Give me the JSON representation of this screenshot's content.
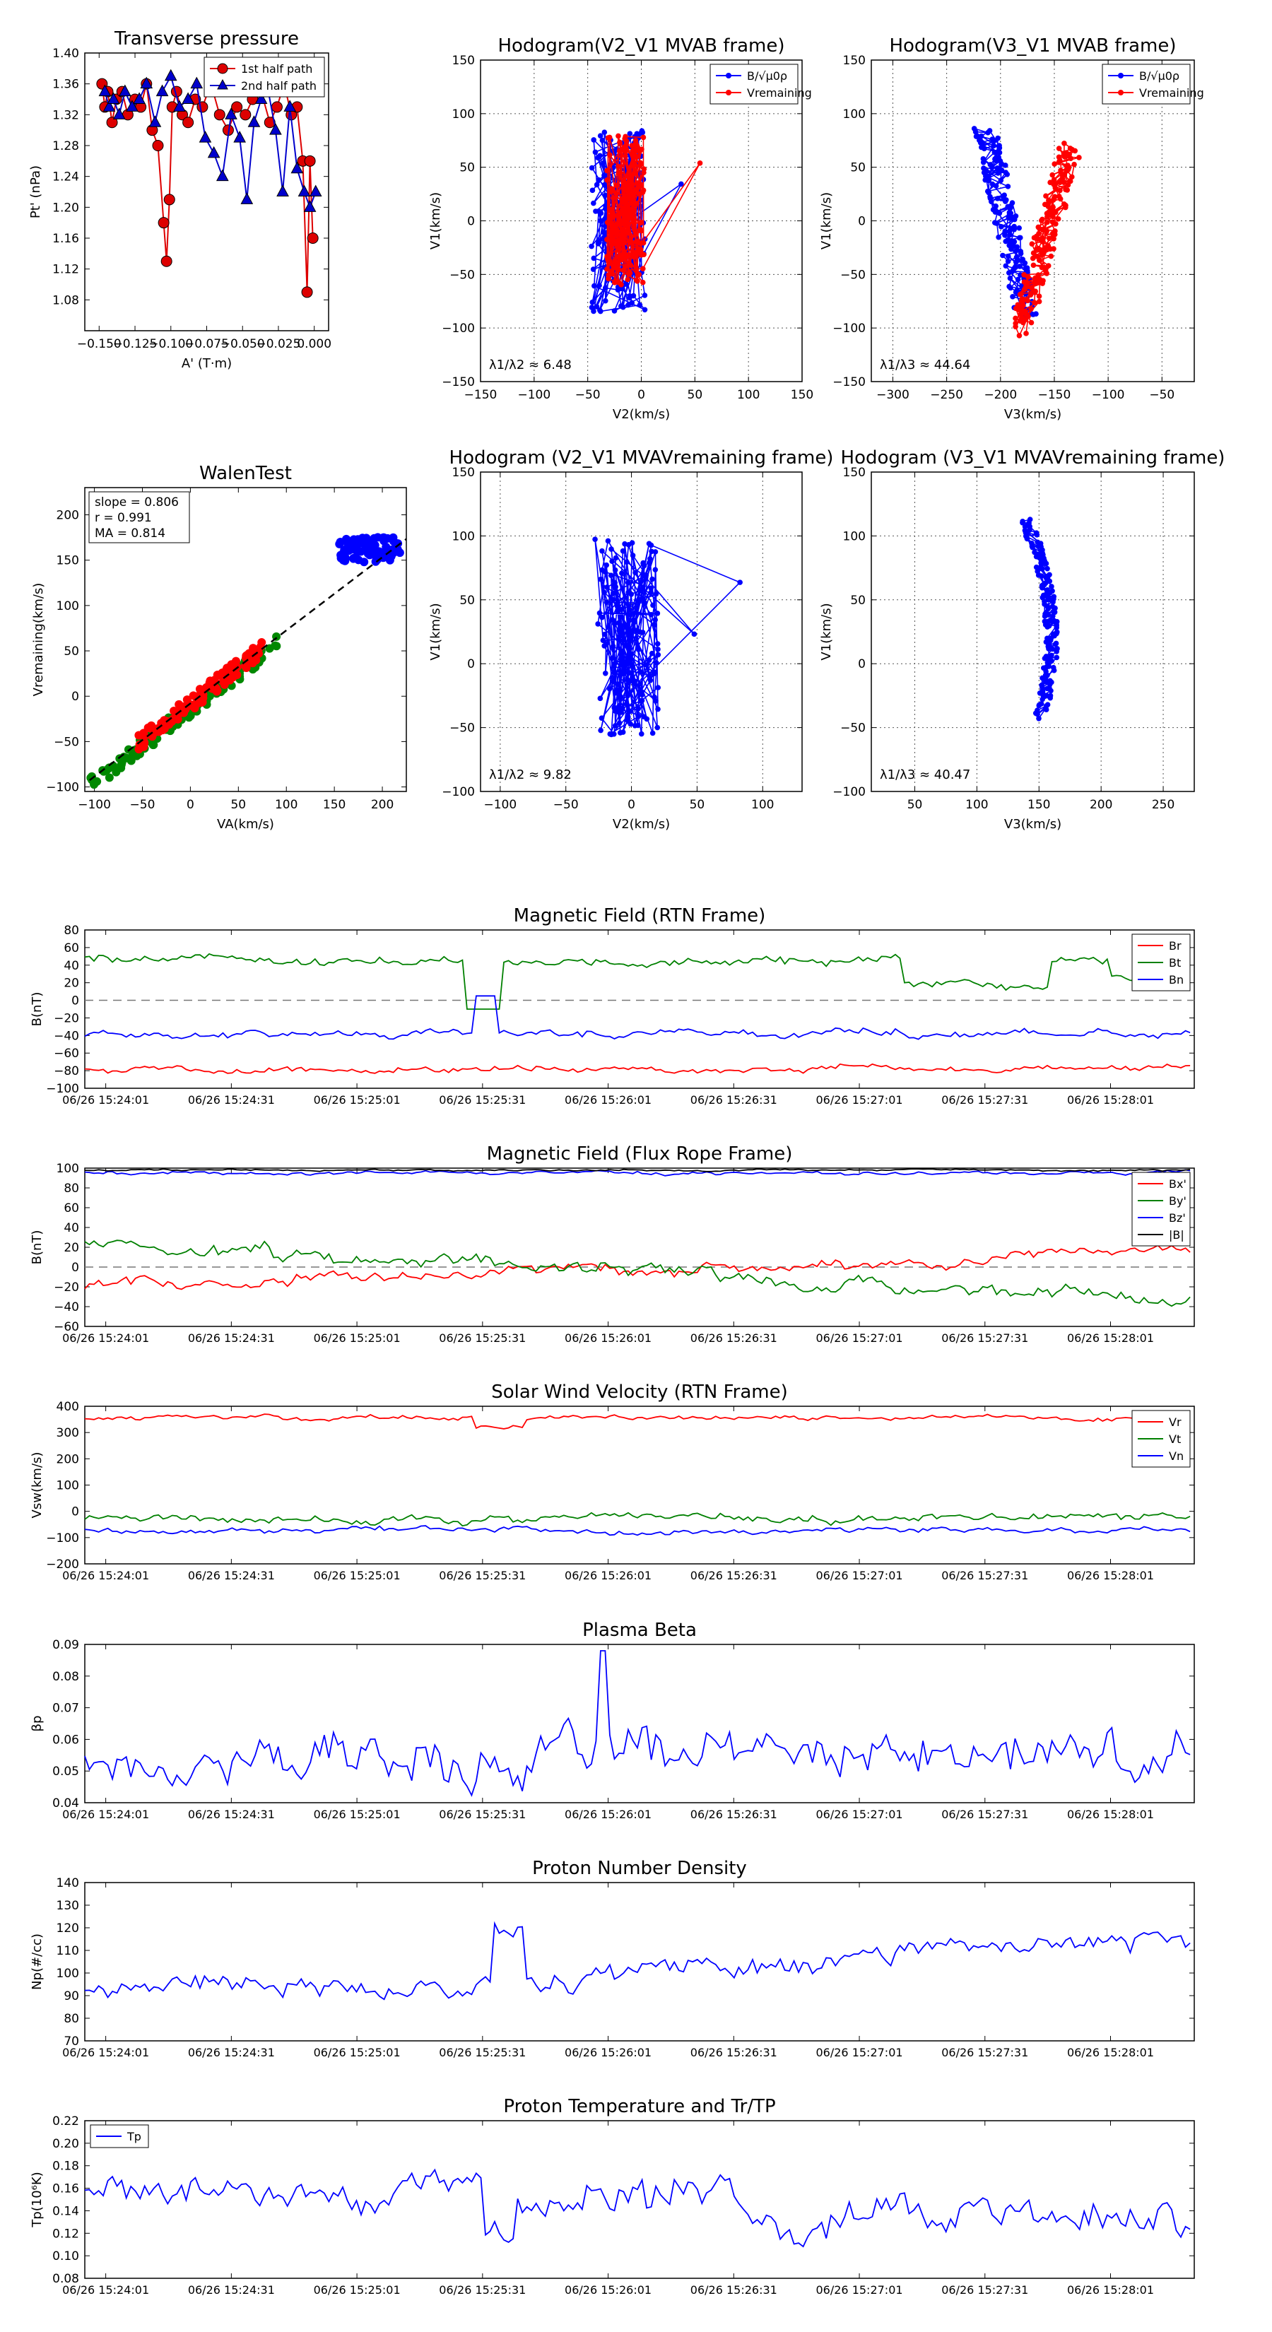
{
  "chart_data": [
    {
      "id": "pt",
      "type": "scatter",
      "title": "Transverse pressure",
      "xlabel": "A' (T·m)",
      "ylabel": "Pt' (nPa)",
      "xlim": [
        -0.16,
        0.01
      ],
      "ylim": [
        1.04,
        1.4
      ],
      "xticks": [
        -0.15,
        -0.125,
        -0.1,
        -0.075,
        -0.05,
        -0.025,
        0.0
      ],
      "xticklabels": [
        "−0.150",
        "−0.125",
        "−0.100",
        "−0.075",
        "−0.050",
        "−0.025",
        "0.000"
      ],
      "yticks": [
        1.08,
        1.12,
        1.16,
        1.2,
        1.24,
        1.28,
        1.32,
        1.36,
        1.4
      ],
      "yticklabels": [
        "1.08",
        "1.12",
        "1.16",
        "1.20",
        "1.24",
        "1.28",
        "1.32",
        "1.36",
        "1.40"
      ],
      "legend_loc": "top-right",
      "series": [
        {
          "name": "1st half path",
          "color": "#dd0000",
          "marker": "circle",
          "x": [
            -0.148,
            -0.146,
            -0.144,
            -0.141,
            -0.138,
            -0.134,
            -0.13,
            -0.125,
            -0.121,
            -0.117,
            -0.113,
            -0.109,
            -0.105,
            -0.103,
            -0.101,
            -0.099,
            -0.096,
            -0.092,
            -0.088,
            -0.083,
            -0.078,
            -0.072,
            -0.066,
            -0.06,
            -0.054,
            -0.048,
            -0.043,
            -0.037,
            -0.031,
            -0.026,
            -0.021,
            -0.016,
            -0.012,
            -0.008,
            -0.005,
            -0.003,
            -0.001
          ],
          "y": [
            1.36,
            1.33,
            1.35,
            1.31,
            1.34,
            1.35,
            1.32,
            1.34,
            1.33,
            1.36,
            1.3,
            1.28,
            1.18,
            1.13,
            1.21,
            1.33,
            1.35,
            1.32,
            1.31,
            1.34,
            1.33,
            1.36,
            1.32,
            1.3,
            1.33,
            1.32,
            1.34,
            1.35,
            1.31,
            1.33,
            1.36,
            1.32,
            1.33,
            1.26,
            1.09,
            1.26,
            1.16
          ]
        },
        {
          "name": "2nd half path",
          "color": "#0000cc",
          "marker": "triangle",
          "x": [
            -0.146,
            -0.143,
            -0.14,
            -0.136,
            -0.132,
            -0.127,
            -0.122,
            -0.117,
            -0.111,
            -0.106,
            -0.1,
            -0.094,
            -0.088,
            -0.082,
            -0.076,
            -0.07,
            -0.064,
            -0.058,
            -0.052,
            -0.047,
            -0.042,
            -0.037,
            -0.032,
            -0.027,
            -0.022,
            -0.017,
            -0.012,
            -0.007,
            -0.003,
            0.001
          ],
          "y": [
            1.35,
            1.33,
            1.34,
            1.32,
            1.35,
            1.33,
            1.34,
            1.36,
            1.31,
            1.35,
            1.37,
            1.33,
            1.34,
            1.36,
            1.29,
            1.27,
            1.24,
            1.32,
            1.29,
            1.21,
            1.31,
            1.34,
            1.35,
            1.3,
            1.22,
            1.33,
            1.25,
            1.22,
            1.2,
            1.22
          ]
        }
      ]
    },
    {
      "id": "h12",
      "type": "line",
      "title": "Hodogram(V2_V1 MVAB frame)",
      "xlabel": "V2(km/s)",
      "ylabel": "V1(km/s)",
      "xlim": [
        -150,
        150
      ],
      "ylim": [
        -150,
        150
      ],
      "xticks": [
        -150,
        -100,
        -50,
        0,
        50,
        100,
        150
      ],
      "xticklabels": [
        "−150",
        "−100",
        "−50",
        "0",
        "50",
        "100",
        "150"
      ],
      "yticks": [
        -150,
        -100,
        -50,
        0,
        50,
        100,
        150
      ],
      "yticklabels": [
        "−150",
        "−100",
        "−50",
        "0",
        "50",
        "100",
        "150"
      ],
      "legend_loc": "top-right",
      "annotation": "λ1/λ2 ≈ 6.48",
      "series": [
        {
          "name": "B/√μ0ρ",
          "color": "#0000ff",
          "center": [
            -22,
            0
          ],
          "spread": [
            32,
            65
          ]
        },
        {
          "name": "Vremaining",
          "color": "#ff0000",
          "center": [
            -15,
            10
          ],
          "spread": [
            22,
            55
          ]
        }
      ]
    },
    {
      "id": "h13",
      "type": "line",
      "title": "Hodogram(V3_V1 MVAB frame)",
      "xlabel": "V3(km/s)",
      "ylabel": "V1(km/s)",
      "xlim": [
        -320,
        -20
      ],
      "ylim": [
        -150,
        150
      ],
      "xticks": [
        -300,
        -250,
        -200,
        -150,
        -100,
        -50
      ],
      "xticklabels": [
        "−300",
        "−250",
        "−200",
        "−150",
        "−100",
        "−50"
      ],
      "yticks": [
        -150,
        -100,
        -50,
        0,
        50,
        100,
        150
      ],
      "yticklabels": [
        "−150",
        "−100",
        "−50",
        "0",
        "50",
        "100",
        "150"
      ],
      "legend_loc": "top-right",
      "annotation": "λ1/λ3 ≈ 44.64",
      "series": [
        {
          "name": "B/√μ0ρ",
          "color": "#0000ff",
          "center": [
            -195,
            0
          ],
          "tilt": -0.22
        },
        {
          "name": "Vremaining",
          "color": "#ff0000",
          "center": [
            -158,
            -15
          ],
          "tilt": 0.28
        }
      ]
    },
    {
      "id": "walen",
      "type": "scatter",
      "title": "WalenTest",
      "xlabel": "VA(km/s)",
      "ylabel": "Vremaining(km/s)",
      "xlim": [
        -110,
        225
      ],
      "ylim": [
        -105,
        230
      ],
      "xticks": [
        -100,
        -50,
        0,
        50,
        100,
        150,
        200
      ],
      "xticklabels": [
        "−100",
        "−50",
        "0",
        "50",
        "100",
        "150",
        "200"
      ],
      "yticks": [
        -100,
        -50,
        0,
        50,
        100,
        150,
        200
      ],
      "yticklabels": [
        "−100",
        "−50",
        "0",
        "50",
        "100",
        "150",
        "200"
      ],
      "stats": [
        "slope = 0.806",
        "r = 0.991",
        "MA = 0.814"
      ],
      "fit": {
        "slope": 0.806,
        "intercept": -8
      },
      "series": [
        {
          "name": "red",
          "color": "#ff0000"
        },
        {
          "name": "green",
          "color": "#008800"
        },
        {
          "name": "blue",
          "color": "#0000ff"
        }
      ]
    },
    {
      "id": "h12r",
      "type": "line",
      "title": "Hodogram (V2_V1 MVAVremaining frame)",
      "xlabel": "V2(km/s)",
      "ylabel": "V1(km/s)",
      "xlim": [
        -115,
        130
      ],
      "ylim": [
        -100,
        150
      ],
      "xticks": [
        -100,
        -50,
        0,
        50,
        100
      ],
      "xticklabels": [
        "−100",
        "−50",
        "0",
        "50",
        "100"
      ],
      "yticks": [
        -100,
        -50,
        0,
        50,
        100,
        150
      ],
      "yticklabels": [
        "−100",
        "−50",
        "0",
        "50",
        "100",
        "150"
      ],
      "annotation": "λ1/λ2 ≈ 9.82",
      "series": [
        {
          "name": "V",
          "color": "#0000ff",
          "center": [
            -2,
            20
          ],
          "spread": [
            28,
            60
          ]
        }
      ]
    },
    {
      "id": "h13r",
      "type": "line",
      "title": "Hodogram (V3_V1 MVAVremaining frame)",
      "xlabel": "V3(km/s)",
      "ylabel": "V1(km/s)",
      "xlim": [
        15,
        275
      ],
      "ylim": [
        -100,
        150
      ],
      "xticks": [
        50,
        100,
        150,
        200,
        250
      ],
      "xticklabels": [
        "50",
        "100",
        "150",
        "200",
        "250"
      ],
      "yticks": [
        -100,
        -50,
        0,
        50,
        100,
        150
      ],
      "yticklabels": [
        "−100",
        "−50",
        "0",
        "50",
        "100",
        "150"
      ],
      "annotation": "λ1/λ3 ≈ 40.47",
      "series": [
        {
          "name": "V",
          "color": "#0000ff",
          "center": [
            160,
            30
          ]
        }
      ]
    },
    {
      "id": "ts_brtn",
      "type": "line",
      "title": "Magnetic Field (RTN Frame)",
      "ylabel": "B(nT)",
      "ylim": [
        -100,
        80
      ],
      "yticks": [
        -100,
        -80,
        -60,
        -40,
        -20,
        0,
        20,
        40,
        60,
        80
      ],
      "yticklabels": [
        "−100",
        "−80",
        "−60",
        "−40",
        "−20",
        "0",
        "20",
        "40",
        "60",
        "80"
      ],
      "zero_line": true,
      "legend_loc": "top-right",
      "series": [
        {
          "name": "Br",
          "color": "#ff0000",
          "base": -78,
          "noise": 4
        },
        {
          "name": "Bt",
          "color": "#008000",
          "base": 45,
          "noise": 6
        },
        {
          "name": "Bn",
          "color": "#0000ff",
          "base": -38,
          "noise": 5
        }
      ]
    },
    {
      "id": "ts_bfr",
      "type": "line",
      "title": "Magnetic Field (Flux Rope Frame)",
      "ylabel": "B(nT)",
      "ylim": [
        -60,
        100
      ],
      "yticks": [
        -60,
        -40,
        -20,
        0,
        20,
        40,
        60,
        80,
        100
      ],
      "yticklabels": [
        "−60",
        "−40",
        "−20",
        "0",
        "20",
        "40",
        "60",
        "80",
        "100"
      ],
      "zero_line": true,
      "legend_loc": "top-right",
      "series": [
        {
          "name": "Bx'",
          "color": "#ff0000",
          "base": -5,
          "noise": 6
        },
        {
          "name": "By'",
          "color": "#008000",
          "base": 10,
          "noise": 8
        },
        {
          "name": "Bz'",
          "color": "#0000ff",
          "base": 95,
          "noise": 2
        },
        {
          "name": "|B|",
          "color": "#000000",
          "base": 98,
          "noise": 1
        }
      ]
    },
    {
      "id": "ts_v",
      "type": "line",
      "title": "Solar Wind Velocity (RTN Frame)",
      "ylabel": "Vsw(km/s)",
      "ylim": [
        -200,
        400
      ],
      "yticks": [
        -200,
        -100,
        0,
        100,
        200,
        300,
        400
      ],
      "yticklabels": [
        "−200",
        "−100",
        "0",
        "100",
        "200",
        "300",
        "400"
      ],
      "legend_loc": "top-right",
      "series": [
        {
          "name": "Vr",
          "color": "#ff0000",
          "base": 355,
          "noise": 10
        },
        {
          "name": "Vt",
          "color": "#008000",
          "base": -30,
          "noise": 18
        },
        {
          "name": "Vn",
          "color": "#0000ff",
          "base": -70,
          "noise": 12
        }
      ]
    },
    {
      "id": "ts_beta",
      "type": "line",
      "title": "Plasma Beta",
      "ylabel": "βp",
      "ylim": [
        0.04,
        0.09
      ],
      "yticks": [
        0.04,
        0.05,
        0.06,
        0.07,
        0.08,
        0.09
      ],
      "yticklabels": [
        "0.04",
        "0.05",
        "0.06",
        "0.07",
        "0.08",
        "0.09"
      ],
      "series": [
        {
          "name": "beta",
          "color": "#0000ff",
          "base": 0.054,
          "noise": 0.008
        }
      ]
    },
    {
      "id": "ts_np",
      "type": "line",
      "title": "Proton Number Density",
      "ylabel": "Np(#/cc)",
      "ylim": [
        70,
        140
      ],
      "yticks": [
        70,
        80,
        90,
        100,
        110,
        120,
        130,
        140
      ],
      "yticklabels": [
        "70",
        "80",
        "90",
        "100",
        "110",
        "120",
        "130",
        "140"
      ],
      "series": [
        {
          "name": "Np",
          "color": "#0000ff",
          "base": 95,
          "noise": 5
        }
      ]
    },
    {
      "id": "ts_tp",
      "type": "line",
      "title": "Proton Temperature and Tr/TP",
      "ylabel": "Tp(10⁶K)",
      "ylim": [
        0.08,
        0.22
      ],
      "yticks": [
        0.08,
        0.1,
        0.12,
        0.14,
        0.16,
        0.18,
        0.2,
        0.22
      ],
      "yticklabels": [
        "0.08",
        "0.10",
        "0.12",
        "0.14",
        "0.16",
        "0.18",
        "0.20",
        "0.22"
      ],
      "legend_loc": "top-left",
      "series": [
        {
          "name": "Tp",
          "color": "#0000ff",
          "base": 0.155,
          "noise": 0.018
        }
      ]
    }
  ],
  "time_axis": {
    "ticks": [
      "06/26 15:24:01",
      "06/26 15:24:31",
      "06/26 15:25:01",
      "06/26 15:25:31",
      "06/26 15:26:01",
      "06/26 15:26:31",
      "06/26 15:27:01",
      "06/26 15:27:31",
      "06/26 15:28:01"
    ],
    "tmin": -5,
    "tmax": 260,
    "tick_step_s": 30
  }
}
